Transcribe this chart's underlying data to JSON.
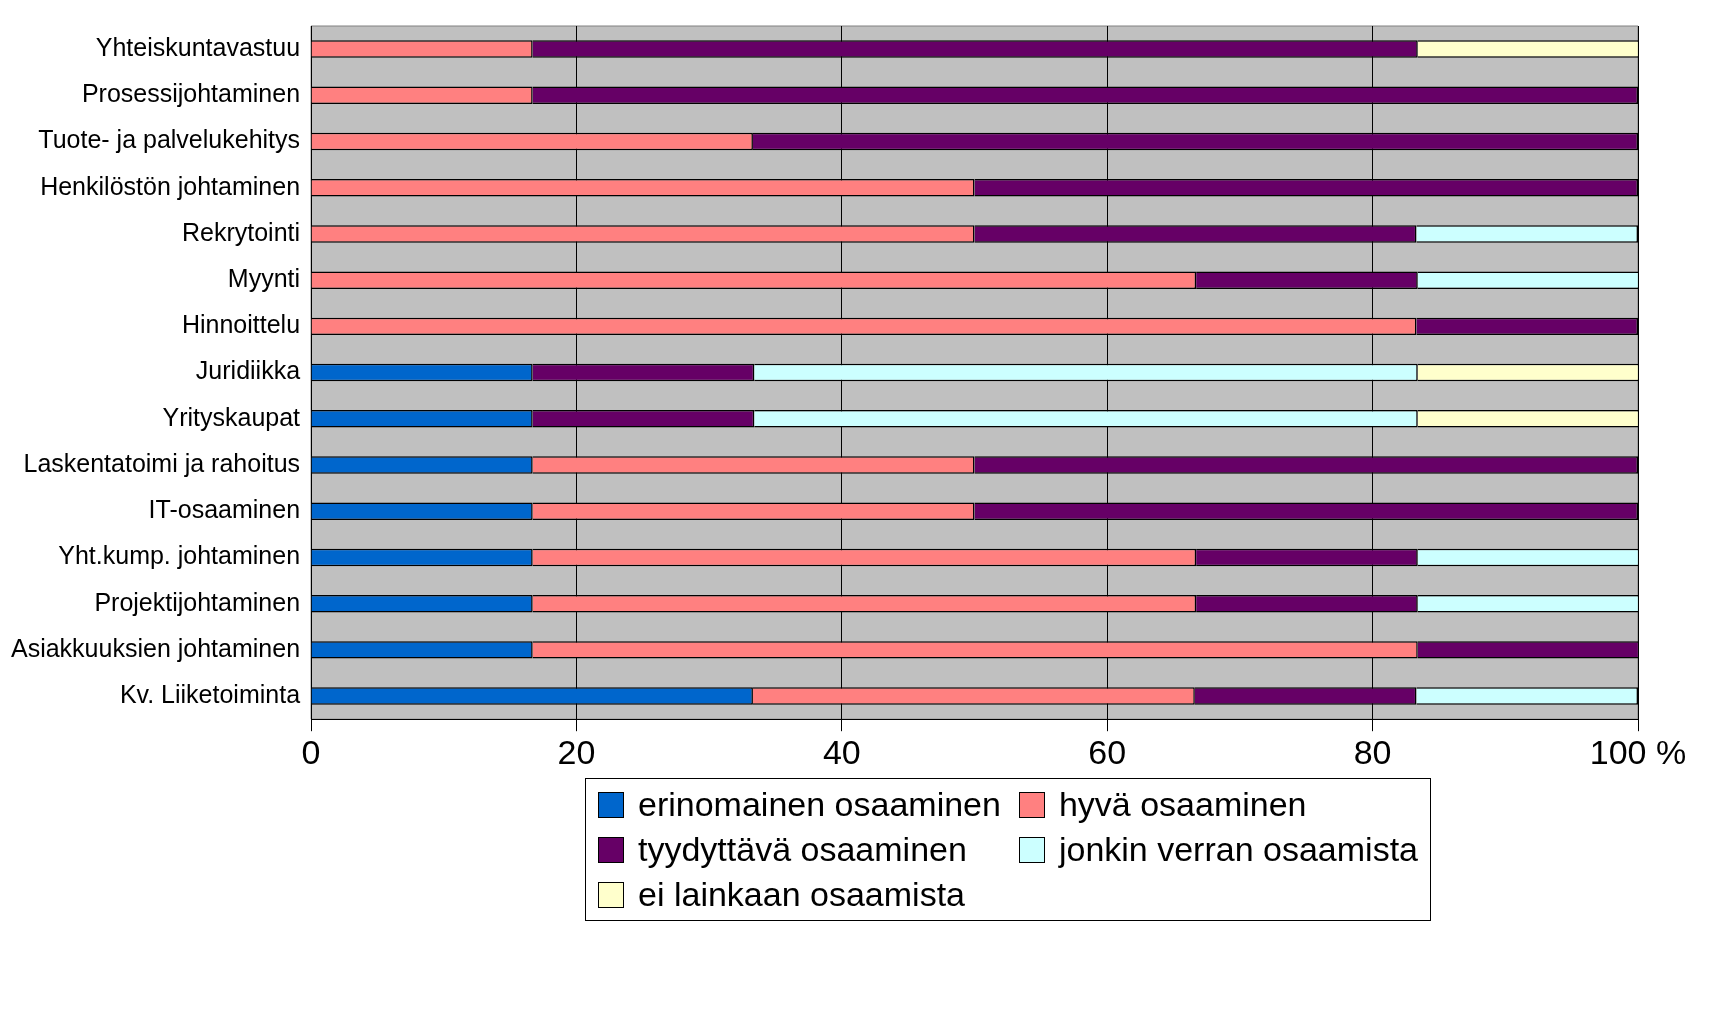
{
  "chart_data": {
    "type": "bar",
    "orientation": "horizontal",
    "stacked": true,
    "grid": "x",
    "legend": "bottom",
    "categories": [
      "Yhteiskuntavastuu",
      "Prosessijohtaminen",
      "Tuote- ja palvelukehitys",
      "Henkilöstön johtaminen",
      "Rekrytointi",
      "Myynti",
      "Hinnoittelu",
      "Juridiikka",
      "Yrityskaupat",
      "Laskentatoimi ja rahoitus",
      "IT-osaaminen",
      "Yht.kump. johtaminen",
      "Projektijohtaminen",
      "Asiakkuuksien johtaminen",
      "Kv. Liiketoiminta"
    ],
    "xlim": [
      0,
      100
    ],
    "xticks": [
      0,
      20,
      40,
      60,
      80,
      {
        "value": 100,
        "label": "100 %"
      }
    ],
    "series": [
      {
        "name": "erinomainen osaaminen",
        "color": "#0066cc",
        "values": [
          null,
          null,
          null,
          null,
          null,
          null,
          null,
          16.7,
          16.7,
          16.7,
          16.7,
          16.7,
          16.7,
          16.7,
          33.3
        ]
      },
      {
        "name": "hyvä osaaminen",
        "color": "#ff8080",
        "values": [
          16.7,
          16.7,
          33.3,
          50,
          50,
          66.7,
          83.3,
          null,
          null,
          33.3,
          33.3,
          50,
          50,
          66.7,
          33.3
        ]
      },
      {
        "name": "tyydyttävä osaaminen",
        "color": "#660066",
        "values": [
          66.7,
          83.3,
          66.7,
          50,
          33.3,
          16.7,
          16.7,
          16.7,
          16.7,
          50,
          50,
          16.7,
          16.7,
          16.7,
          16.7
        ]
      },
      {
        "name": "jonkin verran osaamista",
        "color": "#ccffff",
        "values": [
          null,
          null,
          null,
          null,
          16.7,
          16.7,
          null,
          50,
          50,
          null,
          null,
          16.7,
          16.7,
          null,
          16.7
        ]
      },
      {
        "name": "ei lainkaan osaamista",
        "color": "#ffffcc",
        "values": [
          16.7,
          null,
          null,
          null,
          null,
          null,
          null,
          16.7,
          16.7,
          null,
          null,
          null,
          null,
          null,
          null
        ]
      }
    ]
  }
}
